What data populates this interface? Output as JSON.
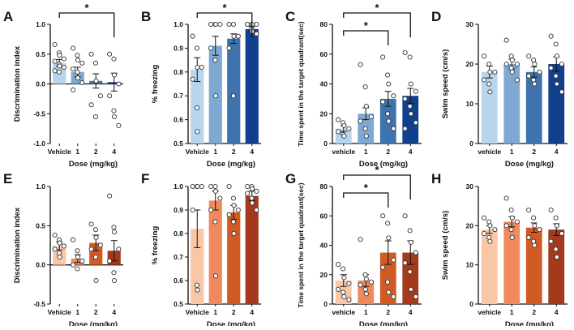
{
  "chart_data": [
    {
      "panel": "A",
      "type": "bar",
      "ylabel": "Discrimination index",
      "xlabel": "Dose (mg/kg)",
      "categories": [
        "Vehicle",
        "1",
        "2",
        "4"
      ],
      "values": [
        0.35,
        0.2,
        0.05,
        0.03
      ],
      "errors": [
        0.06,
        0.08,
        0.12,
        0.15
      ],
      "ylim": [
        -1,
        1
      ],
      "yticks": [
        "-1.0",
        "-0.5",
        "0.0",
        "0.5",
        "1.0"
      ],
      "points": [
        [
          0.66,
          0.52,
          0.48,
          0.42,
          0.38,
          0.33,
          0.3,
          0.28,
          0.22,
          0.2
        ],
        [
          0.6,
          0.48,
          0.4,
          0.35,
          0.25,
          0.2,
          0.1,
          0.02,
          -0.1
        ],
        [
          0.5,
          0.35,
          0.05,
          -0.2,
          -0.35,
          -0.55
        ],
        [
          0.5,
          0.42,
          0.15,
          0.0,
          -0.2,
          -0.45,
          -0.55,
          -0.7
        ]
      ],
      "colors": [
        "#b9d5ec",
        "#7fa9d3",
        "#3f73ad",
        "#11408d"
      ],
      "sig": [
        {
          "from": 0,
          "to": 3,
          "label": "*"
        }
      ]
    },
    {
      "panel": "B",
      "type": "bar",
      "ylabel": "% freezing",
      "xlabel": "Dose (mg/kg)",
      "categories": [
        "Vehicle",
        "1",
        "2",
        "4"
      ],
      "values": [
        0.81,
        0.91,
        0.94,
        0.98
      ],
      "errors": [
        0.05,
        0.04,
        0.02,
        0.01
      ],
      "ylim": [
        0.5,
        1.0
      ],
      "yticks": [
        "0.5",
        "0.6",
        "0.7",
        "0.8",
        "0.9",
        "1.0"
      ],
      "points": [
        [
          0.95,
          0.9,
          0.82,
          0.82,
          0.77,
          0.65,
          0.55
        ],
        [
          1.0,
          1.0,
          1.0,
          1.0,
          0.9,
          0.85,
          0.7
        ],
        [
          1.0,
          1.0,
          0.95,
          0.95,
          0.9,
          0.7
        ],
        [
          1.0,
          1.0,
          1.0,
          1.0,
          1.0,
          0.98,
          0.97,
          0.96
        ]
      ],
      "colors": [
        "#b9d5ec",
        "#7fa9d3",
        "#3f73ad",
        "#11408d"
      ],
      "sig": [
        {
          "from": 0,
          "to": 3,
          "label": "*"
        }
      ]
    },
    {
      "panel": "C",
      "type": "bar",
      "ylabel": "Time spent in the target quadrant(sec)",
      "xlabel": "Dose (mg/kg)",
      "categories": [
        "vehicle",
        "1",
        "2",
        "4"
      ],
      "values": [
        10,
        20,
        30,
        32
      ],
      "errors": [
        2,
        4,
        5,
        5
      ],
      "ylim": [
        0,
        80
      ],
      "yticks": [
        "0",
        "20",
        "40",
        "60",
        "80"
      ],
      "points": [
        [
          16,
          14,
          12,
          10,
          8,
          6,
          5
        ],
        [
          53,
          38,
          25,
          18,
          15,
          10,
          5
        ],
        [
          58,
          46,
          40,
          32,
          28,
          20,
          15,
          10
        ],
        [
          61,
          58,
          40,
          35,
          30,
          25,
          20,
          14,
          10
        ]
      ],
      "colors": [
        "#b9d5ec",
        "#7fa9d3",
        "#3f73ad",
        "#11408d"
      ],
      "sig": [
        {
          "from": 0,
          "to": 3,
          "label": "*"
        },
        {
          "from": 0,
          "to": 2,
          "label": "*"
        }
      ]
    },
    {
      "panel": "D",
      "type": "bar",
      "ylabel": "Swim speed (cm/s)",
      "xlabel": "Dose (mg/kg)",
      "categories": [
        "vehicle",
        "1",
        "2",
        "4"
      ],
      "values": [
        18,
        20,
        18,
        20
      ],
      "errors": [
        1.5,
        1.2,
        1.3,
        1.8
      ],
      "ylim": [
        0,
        30
      ],
      "yticks": [
        "0",
        "10",
        "20",
        "30"
      ],
      "points": [
        [
          22,
          20,
          18,
          18,
          16,
          15,
          13
        ],
        [
          26,
          22,
          21,
          20,
          20,
          19,
          18,
          16
        ],
        [
          22,
          21,
          20,
          18,
          17,
          16,
          15
        ],
        [
          27,
          25,
          22,
          20,
          19,
          17,
          15,
          13
        ]
      ],
      "colors": [
        "#b9d5ec",
        "#7fa9d3",
        "#3f73ad",
        "#11408d"
      ],
      "sig": []
    },
    {
      "panel": "E",
      "type": "bar",
      "ylabel": "Discrimination index",
      "xlabel": "Dose (mg/kg)",
      "categories": [
        "Vehicle",
        "1",
        "2",
        "4"
      ],
      "values": [
        0.24,
        0.08,
        0.28,
        0.18
      ],
      "errors": [
        0.05,
        0.05,
        0.1,
        0.13
      ],
      "ylim": [
        -0.5,
        1
      ],
      "yticks": [
        "-0.5",
        "0.0",
        "0.5",
        "1.0"
      ],
      "points": [
        [
          0.38,
          0.32,
          0.28,
          0.24,
          0.2,
          0.15,
          0.1
        ],
        [
          0.32,
          0.18,
          0.1,
          0.05,
          0.0,
          -0.05
        ],
        [
          0.52,
          0.45,
          0.35,
          0.25,
          0.2,
          0.1,
          -0.2
        ],
        [
          0.88,
          0.48,
          0.42,
          0.2,
          0.05,
          -0.1,
          -0.2
        ]
      ],
      "colors": [
        "#f9c7a6",
        "#f08a5d",
        "#d25a25",
        "#a33a1e"
      ],
      "sig": []
    },
    {
      "panel": "F",
      "type": "bar",
      "ylabel": "% freezing",
      "xlabel": "Dose (mg/kg)",
      "categories": [
        "Vehicle",
        "1",
        "2",
        "4"
      ],
      "values": [
        0.82,
        0.94,
        0.89,
        0.96
      ],
      "errors": [
        0.08,
        0.04,
        0.03,
        0.02
      ],
      "ylim": [
        0.5,
        1.0
      ],
      "yticks": [
        "0.5",
        "0.6",
        "0.7",
        "0.8",
        "0.9",
        "1.0"
      ],
      "points": [
        [
          1.0,
          1.0,
          1.0,
          1.0,
          0.9,
          0.58,
          0.56
        ],
        [
          1.0,
          1.0,
          0.98,
          0.95,
          0.9,
          0.85,
          0.62
        ],
        [
          1.0,
          0.95,
          0.92,
          0.9,
          0.88,
          0.85,
          0.8
        ],
        [
          1.0,
          1.0,
          0.99,
          0.98,
          0.97,
          0.95,
          0.93,
          0.9
        ]
      ],
      "colors": [
        "#f9c7a6",
        "#f08a5d",
        "#d25a25",
        "#a33a1e"
      ],
      "sig": []
    },
    {
      "panel": "G",
      "type": "bar",
      "ylabel": "Time spent in the target quadrant(sec)",
      "xlabel": "Dose (mg/kg)",
      "categories": [
        "vehicle",
        "1",
        "2",
        "4"
      ],
      "values": [
        16,
        16,
        35,
        35
      ],
      "errors": [
        4,
        4,
        8,
        8
      ],
      "ylim": [
        0,
        80
      ],
      "yticks": [
        "0",
        "20",
        "40",
        "60",
        "80"
      ],
      "points": [
        [
          27,
          24,
          18,
          14,
          10,
          8,
          5,
          3
        ],
        [
          44,
          20,
          17,
          15,
          13,
          10,
          7
        ],
        [
          60,
          55,
          45,
          30,
          25,
          15,
          8,
          5
        ],
        [
          60,
          50,
          42,
          35,
          28,
          22,
          10,
          5
        ]
      ],
      "colors": [
        "#f9c7a6",
        "#f08a5d",
        "#d25a25",
        "#a33a1e"
      ],
      "sig": [
        {
          "from": 0,
          "to": 3,
          "label": "*"
        },
        {
          "from": 0,
          "to": 2,
          "label": "*"
        }
      ]
    },
    {
      "panel": "H",
      "type": "bar",
      "ylabel": "Swim speed (cm/s)",
      "xlabel": "Dose (mg/kg)",
      "categories": [
        "vehicle",
        "1",
        "2",
        "4"
      ],
      "values": [
        19,
        21,
        19.5,
        19
      ],
      "errors": [
        1,
        1.3,
        1.2,
        1.5
      ],
      "ylim": [
        0,
        30
      ],
      "yticks": [
        "0",
        "10",
        "20",
        "30"
      ],
      "points": [
        [
          22,
          21,
          20,
          19,
          18,
          17,
          16
        ],
        [
          27,
          24,
          22,
          21,
          20,
          19,
          17
        ],
        [
          24,
          22,
          20,
          19,
          17,
          16,
          15
        ],
        [
          24,
          22,
          20,
          18,
          16,
          14,
          12
        ]
      ],
      "colors": [
        "#f9c7a6",
        "#f08a5d",
        "#d25a25",
        "#a33a1e"
      ],
      "sig": []
    }
  ]
}
